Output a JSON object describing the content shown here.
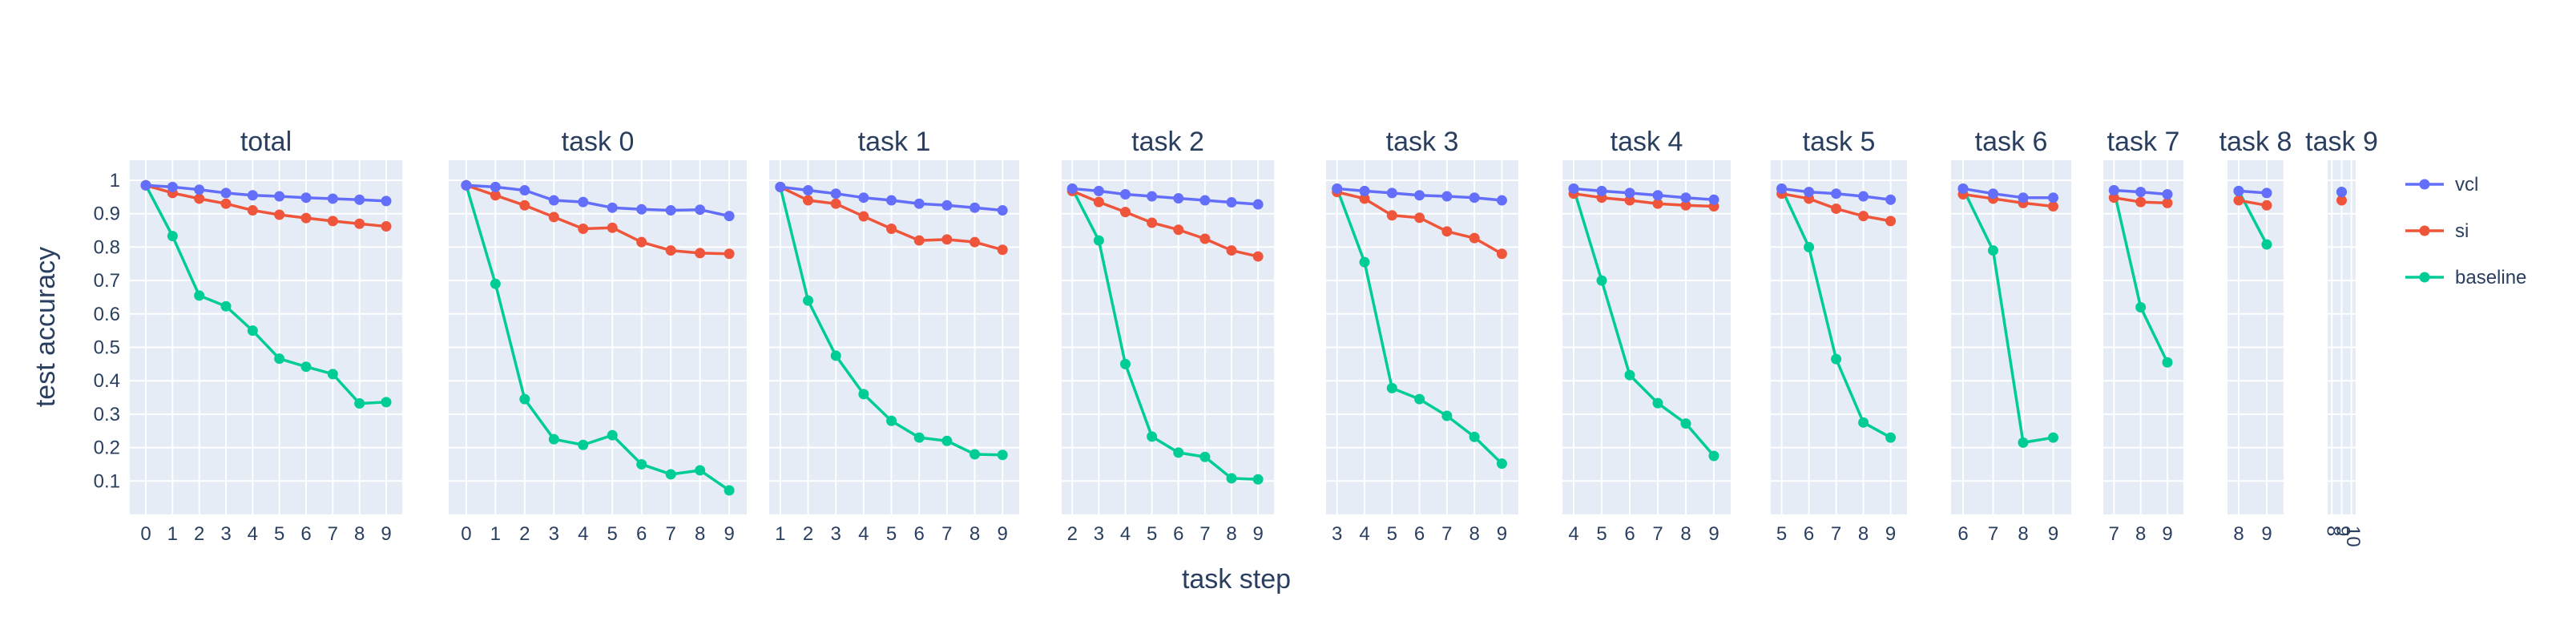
{
  "chart_data": {
    "type": "line",
    "xlabel": "task step",
    "ylabel": "test accuracy",
    "ylim": [
      0,
      1.06
    ],
    "yticks": [
      0.1,
      0.2,
      0.3,
      0.4,
      0.5,
      0.6,
      0.7,
      0.8,
      0.9,
      1
    ],
    "grid": true,
    "legend_position": "right",
    "series_colors": {
      "vcl": "#636efa",
      "si": "#ef553b",
      "baseline": "#00cc96"
    },
    "legend": [
      "vcl",
      "si",
      "baseline"
    ],
    "panels": [
      {
        "title": "total",
        "x": [
          0,
          1,
          2,
          3,
          4,
          5,
          6,
          7,
          8,
          9
        ],
        "series": [
          {
            "name": "vcl",
            "values": [
              0.985,
              0.98,
              0.972,
              0.962,
              0.955,
              0.952,
              0.948,
              0.945,
              0.942,
              0.938
            ]
          },
          {
            "name": "si",
            "values": [
              0.985,
              0.962,
              0.945,
              0.93,
              0.91,
              0.897,
              0.887,
              0.878,
              0.87,
              0.862
            ]
          },
          {
            "name": "baseline",
            "values": [
              0.985,
              0.833,
              0.655,
              0.623,
              0.55,
              0.466,
              0.442,
              0.42,
              0.332,
              0.336
            ]
          }
        ]
      },
      {
        "title": "task 0",
        "x": [
          0,
          1,
          2,
          3,
          4,
          5,
          6,
          7,
          8,
          9
        ],
        "series": [
          {
            "name": "vcl",
            "values": [
              0.985,
              0.98,
              0.97,
              0.94,
              0.935,
              0.918,
              0.913,
              0.91,
              0.912,
              0.893
            ]
          },
          {
            "name": "si",
            "values": [
              0.985,
              0.955,
              0.925,
              0.89,
              0.855,
              0.858,
              0.815,
              0.79,
              0.782,
              0.78
            ]
          },
          {
            "name": "baseline",
            "values": [
              0.985,
              0.69,
              0.345,
              0.225,
              0.208,
              0.237,
              0.15,
              0.12,
              0.132,
              0.072
            ]
          }
        ]
      },
      {
        "title": "task 1",
        "x": [
          1,
          2,
          3,
          4,
          5,
          6,
          7,
          8,
          9
        ],
        "series": [
          {
            "name": "vcl",
            "values": [
              0.98,
              0.97,
              0.96,
              0.948,
              0.94,
              0.93,
              0.925,
              0.918,
              0.91
            ]
          },
          {
            "name": "si",
            "values": [
              0.98,
              0.94,
              0.93,
              0.892,
              0.855,
              0.82,
              0.823,
              0.815,
              0.792
            ]
          },
          {
            "name": "baseline",
            "values": [
              0.98,
              0.64,
              0.475,
              0.36,
              0.28,
              0.23,
              0.22,
              0.18,
              0.178
            ]
          }
        ]
      },
      {
        "title": "task 2",
        "x": [
          2,
          3,
          4,
          5,
          6,
          7,
          8,
          9
        ],
        "series": [
          {
            "name": "vcl",
            "values": [
              0.975,
              0.968,
              0.958,
              0.952,
              0.946,
              0.94,
              0.934,
              0.928
            ]
          },
          {
            "name": "si",
            "values": [
              0.968,
              0.935,
              0.905,
              0.873,
              0.852,
              0.825,
              0.79,
              0.772
            ]
          },
          {
            "name": "baseline",
            "values": [
              0.975,
              0.82,
              0.45,
              0.233,
              0.185,
              0.172,
              0.108,
              0.105
            ]
          }
        ]
      },
      {
        "title": "task 3",
        "x": [
          3,
          4,
          5,
          6,
          7,
          8,
          9
        ],
        "series": [
          {
            "name": "vcl",
            "values": [
              0.975,
              0.968,
              0.962,
              0.955,
              0.952,
              0.948,
              0.94
            ]
          },
          {
            "name": "si",
            "values": [
              0.965,
              0.945,
              0.895,
              0.888,
              0.847,
              0.827,
              0.78
            ]
          },
          {
            "name": "baseline",
            "values": [
              0.975,
              0.755,
              0.378,
              0.345,
              0.295,
              0.232,
              0.152
            ]
          }
        ]
      },
      {
        "title": "task 4",
        "x": [
          4,
          5,
          6,
          7,
          8,
          9
        ],
        "series": [
          {
            "name": "vcl",
            "values": [
              0.975,
              0.968,
              0.962,
              0.955,
              0.948,
              0.942
            ]
          },
          {
            "name": "si",
            "values": [
              0.96,
              0.948,
              0.94,
              0.93,
              0.925,
              0.922
            ]
          },
          {
            "name": "baseline",
            "values": [
              0.975,
              0.7,
              0.417,
              0.333,
              0.272,
              0.175
            ]
          }
        ]
      },
      {
        "title": "task 5",
        "x": [
          5,
          6,
          7,
          8,
          9
        ],
        "series": [
          {
            "name": "vcl",
            "values": [
              0.975,
              0.965,
              0.96,
              0.952,
              0.942
            ]
          },
          {
            "name": "si",
            "values": [
              0.96,
              0.945,
              0.915,
              0.893,
              0.878
            ]
          },
          {
            "name": "baseline",
            "values": [
              0.975,
              0.8,
              0.465,
              0.275,
              0.23
            ]
          }
        ]
      },
      {
        "title": "task 6",
        "x": [
          6,
          7,
          8,
          9
        ],
        "series": [
          {
            "name": "vcl",
            "values": [
              0.975,
              0.96,
              0.948,
              0.948
            ]
          },
          {
            "name": "si",
            "values": [
              0.958,
              0.945,
              0.932,
              0.922
            ]
          },
          {
            "name": "baseline",
            "values": [
              0.975,
              0.79,
              0.215,
              0.23
            ]
          }
        ]
      },
      {
        "title": "task 7",
        "x": [
          7,
          8,
          9
        ],
        "series": [
          {
            "name": "vcl",
            "values": [
              0.97,
              0.965,
              0.958
            ]
          },
          {
            "name": "si",
            "values": [
              0.948,
              0.935,
              0.932
            ]
          },
          {
            "name": "baseline",
            "values": [
              0.97,
              0.62,
              0.455
            ]
          }
        ]
      },
      {
        "title": "task 8",
        "x": [
          8,
          9
        ],
        "series": [
          {
            "name": "vcl",
            "values": [
              0.968,
              0.962
            ]
          },
          {
            "name": "si",
            "values": [
              0.94,
              0.925
            ]
          },
          {
            "name": "baseline",
            "values": [
              0.968,
              0.808
            ]
          }
        ]
      },
      {
        "title": "task 9",
        "x": [
          9
        ],
        "xticklabels": [
          "8",
          "9",
          "10"
        ],
        "series": [
          {
            "name": "vcl",
            "values": [
              0.965
            ]
          },
          {
            "name": "si",
            "values": [
              0.94
            ]
          },
          {
            "name": "baseline",
            "values": [
              0.965
            ]
          }
        ]
      }
    ]
  }
}
